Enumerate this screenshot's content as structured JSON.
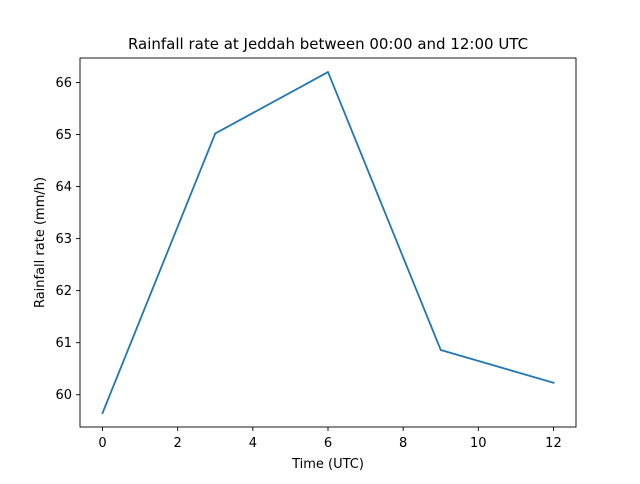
{
  "chart_data": {
    "type": "line",
    "title": "Rainfall rate at Jeddah between 00:00 and 12:00 UTC",
    "xlabel": "Time (UTC)",
    "ylabel": "Rainfall rate (mm/h)",
    "xlim": [
      -0.6,
      12.6
    ],
    "ylim": [
      59.38,
      66.47
    ],
    "xticks": [
      0,
      2,
      4,
      6,
      8,
      10,
      12
    ],
    "yticks": [
      60,
      61,
      62,
      63,
      64,
      65,
      66
    ],
    "grid": false,
    "series": [
      {
        "x": [
          0,
          3,
          6,
          9,
          12
        ],
        "y": [
          59.65,
          65.02,
          66.2,
          60.86,
          60.23
        ],
        "color": "#1f77b4"
      }
    ]
  }
}
